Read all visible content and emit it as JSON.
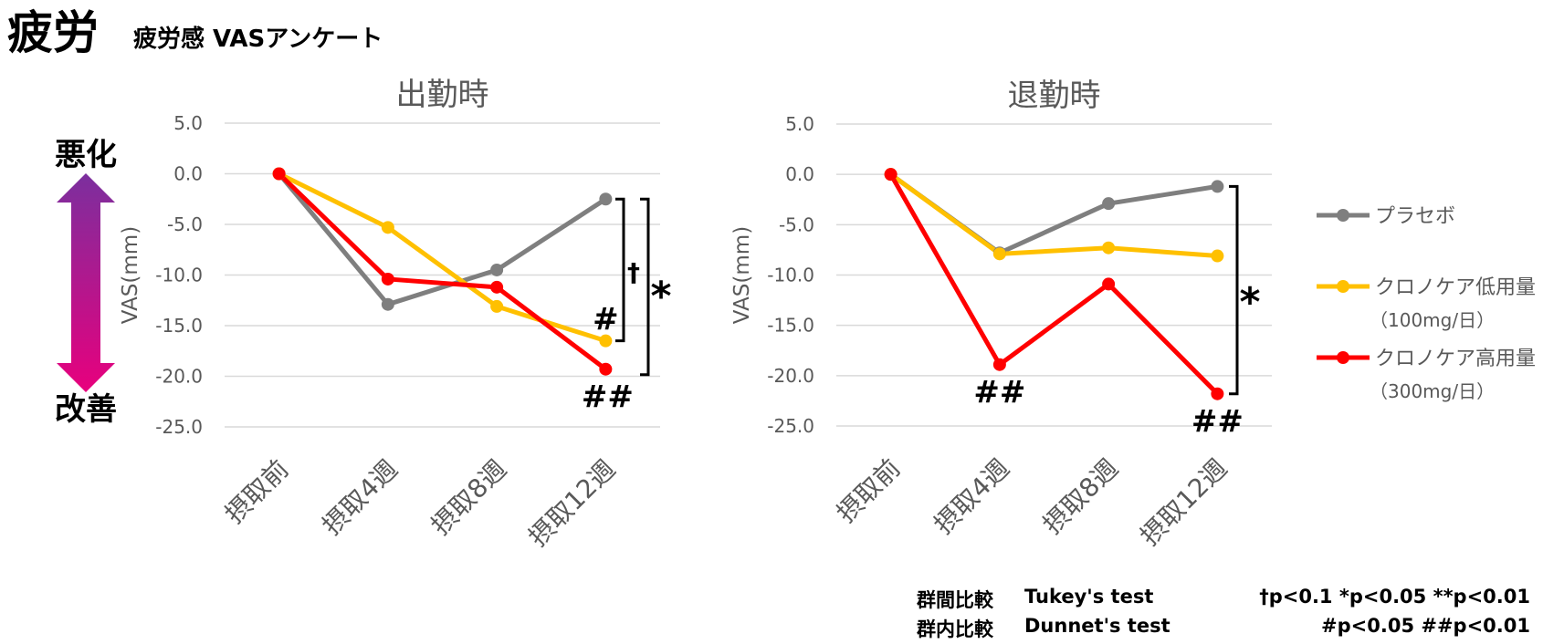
{
  "header": {
    "title": "疲労",
    "subtitle": "疲労感 VASアンケート"
  },
  "direction_arrow": {
    "top_label": "悪化",
    "bottom_label": "改善",
    "top_color": "#7b2f9e",
    "bottom_color": "#e8007d"
  },
  "footnotes": {
    "between_label": "群間比較",
    "between_test": "Tukey's test",
    "between_sig": "†p<0.1 *p<0.05 **p<0.01",
    "within_label": "群内比較",
    "within_test": "Dunnet's test",
    "within_sig": "#p<0.05 ##p<0.01"
  },
  "chart_data": [
    {
      "type": "line",
      "title": "出勤時",
      "xlabel": "",
      "ylabel": "VAS(mm)",
      "ylim": [
        -25,
        5
      ],
      "yticks": [
        5,
        0,
        -5,
        -10,
        -15,
        -20,
        -25
      ],
      "ytick_labels": [
        "5.0",
        "0.0",
        "-5.0",
        "-10.0",
        "-15.0",
        "-20.0",
        "-25.0"
      ],
      "grid": true,
      "categories": [
        "摂取前",
        "摂取4週",
        "摂取8週",
        "摂取12週"
      ],
      "series": [
        {
          "name": "プラセボ",
          "color": "#7f7f7f",
          "values": [
            0,
            -12.9,
            -9.5,
            -2.5
          ]
        },
        {
          "name": "クロノケア低用量（100mg/日）",
          "color": "#ffc000",
          "values": [
            0,
            -5.3,
            -13.1,
            -16.5
          ]
        },
        {
          "name": "クロノケア高用量（300mg/日）",
          "color": "#ff0000",
          "values": [
            0,
            -10.4,
            -11.2,
            -19.3
          ]
        }
      ],
      "annotations": {
        "dagger": "†",
        "star": "*",
        "low_hash": "#",
        "high_hash": "##"
      }
    },
    {
      "type": "line",
      "title": "退勤時",
      "xlabel": "",
      "ylabel": "VAS(mm)",
      "ylim": [
        -25,
        5
      ],
      "yticks": [
        5,
        0,
        -5,
        -10,
        -15,
        -20,
        -25
      ],
      "ytick_labels": [
        "5.0",
        "0.0",
        "-5.0",
        "-10.0",
        "-15.0",
        "-20.0",
        "-25.0"
      ],
      "grid": true,
      "categories": [
        "摂取前",
        "摂取4週",
        "摂取8週",
        "摂取12週"
      ],
      "series": [
        {
          "name": "プラセボ",
          "color": "#7f7f7f",
          "values": [
            0,
            -7.8,
            -2.9,
            -1.2
          ]
        },
        {
          "name": "クロノケア低用量（100mg/日）",
          "color": "#ffc000",
          "values": [
            0,
            -7.9,
            -7.3,
            -8.1
          ]
        },
        {
          "name": "クロノケア高用量（300mg/日）",
          "color": "#ff0000",
          "values": [
            0,
            -18.9,
            -10.9,
            -21.8
          ]
        }
      ],
      "annotations": {
        "star": "*",
        "hash_4w": "##",
        "hash_12w": "##"
      }
    }
  ],
  "legend": {
    "position": "right",
    "items": [
      {
        "name": "プラセボ",
        "sub": "",
        "color": "#7f7f7f"
      },
      {
        "name": "クロノケア低用量",
        "sub": "（100mg/日）",
        "color": "#ffc000"
      },
      {
        "name": "クロノケア高用量",
        "sub": "（300mg/日）",
        "color": "#ff0000"
      }
    ]
  }
}
